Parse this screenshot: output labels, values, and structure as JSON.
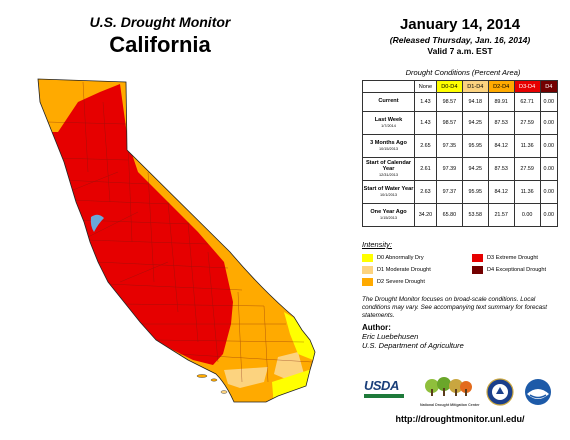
{
  "header": {
    "subtitle": "U.S. Drought Monitor",
    "state": "California",
    "date": "January 14, 2014",
    "released": "(Released Thursday, Jan. 16, 2014)",
    "valid": "Valid 7 a.m. EST"
  },
  "table": {
    "title": "Drought Conditions (Percent Area)",
    "columns": [
      "None",
      "D0-D4",
      "D1-D4",
      "D2-D4",
      "D3-D4",
      "D4"
    ],
    "column_colors": [
      "#ffffff",
      "#ffff00",
      "#fcd37f",
      "#ffaa00",
      "#e60000",
      "#730000"
    ],
    "column_text_colors": [
      "#000000",
      "#000000",
      "#000000",
      "#000000",
      "#ffffff",
      "#ffffff"
    ],
    "rows": [
      {
        "label": "Current",
        "date": "",
        "values": [
          "1.43",
          "98.57",
          "94.18",
          "89.91",
          "62.71",
          "0.00"
        ]
      },
      {
        "label": "Last Week",
        "date": "1/7/2014",
        "values": [
          "1.43",
          "98.57",
          "94.25",
          "87.53",
          "27.59",
          "0.00"
        ]
      },
      {
        "label": "3 Months Ago",
        "date": "10/15/2013",
        "values": [
          "2.65",
          "97.35",
          "95.95",
          "84.12",
          "11.36",
          "0.00"
        ]
      },
      {
        "label": "Start of Calendar Year",
        "date": "12/31/2013",
        "values": [
          "2.61",
          "97.39",
          "94.25",
          "87.53",
          "27.59",
          "0.00"
        ]
      },
      {
        "label": "Start of Water Year",
        "date": "10/1/2013",
        "values": [
          "2.63",
          "97.37",
          "95.95",
          "84.12",
          "11.36",
          "0.00"
        ]
      },
      {
        "label": "One Year Ago",
        "date": "1/15/2013",
        "values": [
          "34.20",
          "65.80",
          "53.58",
          "21.57",
          "0.00",
          "0.00"
        ]
      }
    ]
  },
  "legend": {
    "title": "Intensity:",
    "items": [
      {
        "label": "D0 Abnormally Dry",
        "color": "#ffff00"
      },
      {
        "label": "D1 Moderate Drought",
        "color": "#fcd37f"
      },
      {
        "label": "D2 Severe Drought",
        "color": "#ffaa00"
      },
      {
        "label": "D3 Extreme Drought",
        "color": "#e60000"
      },
      {
        "label": "D4 Exceptional Drought",
        "color": "#730000"
      }
    ]
  },
  "note": "The Drought Monitor focuses on broad-scale conditions. Local conditions may vary. See accompanying text summary for forecast statements.",
  "author": {
    "heading": "Author:",
    "name": "Eric Luebehusen",
    "org": "U.S. Department of Agriculture"
  },
  "logos": {
    "usda": "USDA",
    "ndmc": "National Drought Mitigation Center"
  },
  "url": "http://droughtmonitor.unl.edu/"
}
